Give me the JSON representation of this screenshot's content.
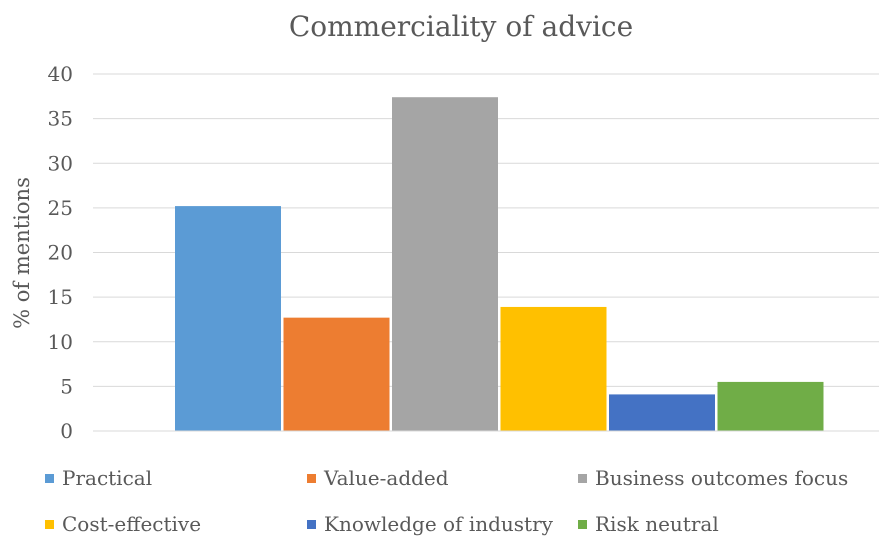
{
  "chart_data": {
    "type": "bar",
    "title": "Commerciality of advice",
    "ylabel": "% of mentions",
    "xlabel": "",
    "ylim": [
      0,
      40
    ],
    "yticks": [
      0,
      5,
      10,
      15,
      20,
      25,
      30,
      35,
      40
    ],
    "grid": true,
    "legend_position": "bottom",
    "series": [
      {
        "name": "Practical",
        "value": 25.2,
        "color": "#5B9BD5"
      },
      {
        "name": "Value-added",
        "value": 12.7,
        "color": "#ED7D31"
      },
      {
        "name": "Business outcomes focus",
        "value": 37.4,
        "color": "#A5A5A5"
      },
      {
        "name": "Cost-effective",
        "value": 13.9,
        "color": "#FFC000"
      },
      {
        "name": "Knowledge of industry",
        "value": 4.1,
        "color": "#4472C4"
      },
      {
        "name": "Risk neutral",
        "value": 5.5,
        "color": "#70AD47"
      }
    ]
  }
}
